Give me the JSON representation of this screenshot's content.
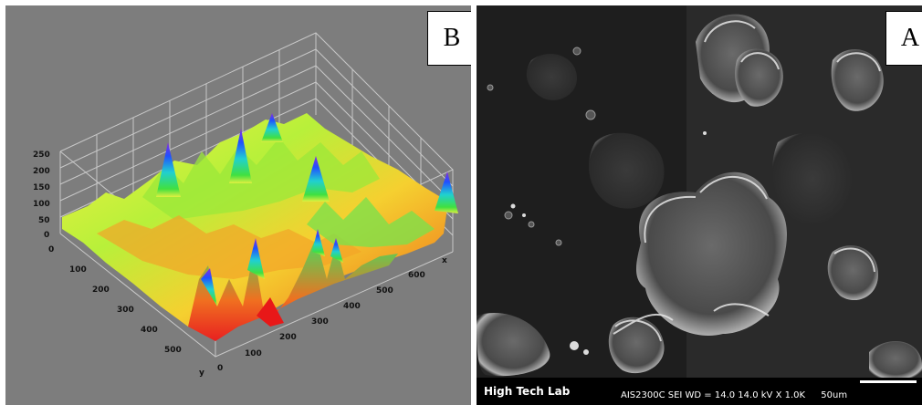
{
  "panel_b": {
    "tag": "B",
    "z_ticks": [
      "250",
      "200",
      "150",
      "100",
      "50",
      "0"
    ],
    "y_ticks": [
      "0",
      "100",
      "200",
      "300",
      "400",
      "500"
    ],
    "x_ticks": [
      "0",
      "100",
      "200",
      "300",
      "400",
      "500",
      "600"
    ],
    "x_axis": "x",
    "y_axis": "y",
    "background": "#7d7d7d"
  },
  "panel_a": {
    "tag": "A",
    "lab_name": "High Tech Lab",
    "params": "AIS2300C  SEI   WD = 14.0   14.0 kV  X 1.0K",
    "scale": "50um"
  }
}
